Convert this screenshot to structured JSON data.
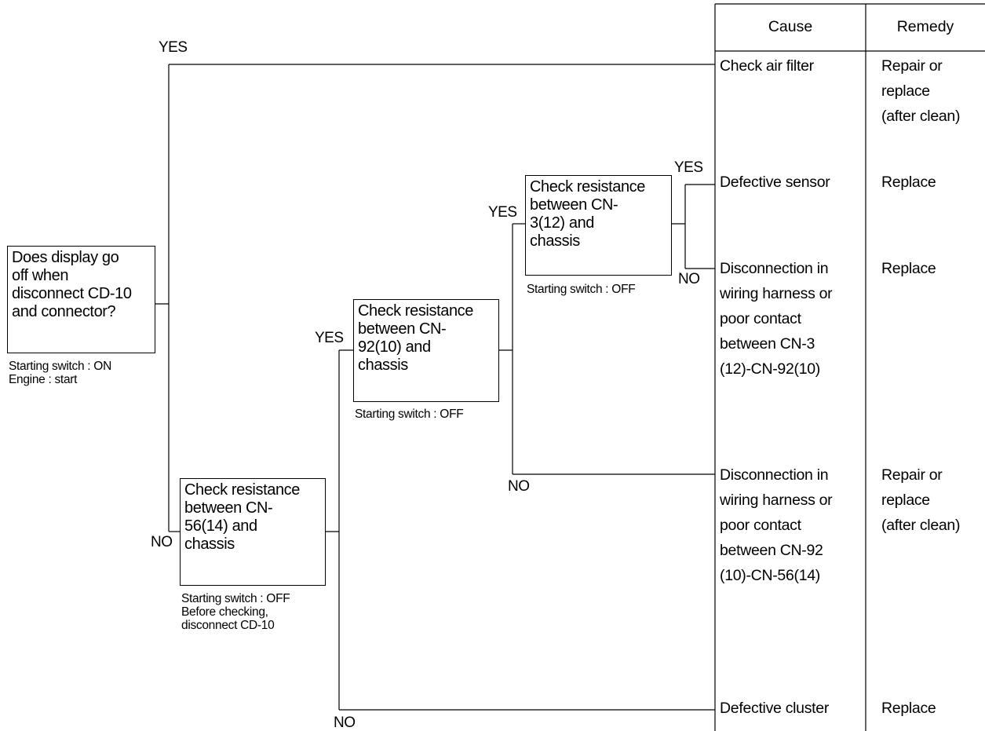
{
  "branches": {
    "yes": "YES",
    "no": "NO"
  },
  "boxes": {
    "display": {
      "lines": [
        "Does display go",
        "off when",
        "disconnect CD-10",
        "and connector?"
      ],
      "notes": [
        "Starting switch : ON",
        "Engine : start"
      ]
    },
    "cn56": {
      "lines": [
        "Check resistance",
        "between CN-",
        "56(14) and",
        "chassis"
      ],
      "notes": [
        "Starting switch : OFF",
        "Before checking,",
        "disconnect CD-10"
      ]
    },
    "cn92": {
      "lines": [
        "Check resistance",
        "between CN-",
        "92(10) and",
        "chassis"
      ],
      "notes": [
        "Starting switch : OFF"
      ]
    },
    "cn3": {
      "lines": [
        "Check resistance",
        "between CN-",
        "3(12) and",
        "chassis"
      ],
      "notes": [
        "Starting switch : OFF"
      ]
    }
  },
  "table": {
    "headers": {
      "cause": "Cause",
      "remedy": "Remedy"
    },
    "rows": [
      {
        "cause": [
          "Check air filter"
        ],
        "remedy": [
          "Repair or",
          "replace",
          "(after clean)"
        ]
      },
      {
        "cause": [
          "Defective sensor"
        ],
        "remedy": [
          "Replace"
        ]
      },
      {
        "cause": [
          "Disconnection in",
          "wiring harness or",
          "poor contact",
          "between CN-3",
          "(12)-CN-92(10)"
        ],
        "remedy": [
          "Replace"
        ]
      },
      {
        "cause": [
          "Disconnection in",
          "wiring harness or",
          "poor contact",
          "between CN-92",
          "(10)-CN-56(14)"
        ],
        "remedy": [
          "Repair or",
          "replace",
          "(after clean)"
        ]
      },
      {
        "cause": [
          "Defective cluster"
        ],
        "remedy": [
          "Replace"
        ]
      }
    ]
  }
}
